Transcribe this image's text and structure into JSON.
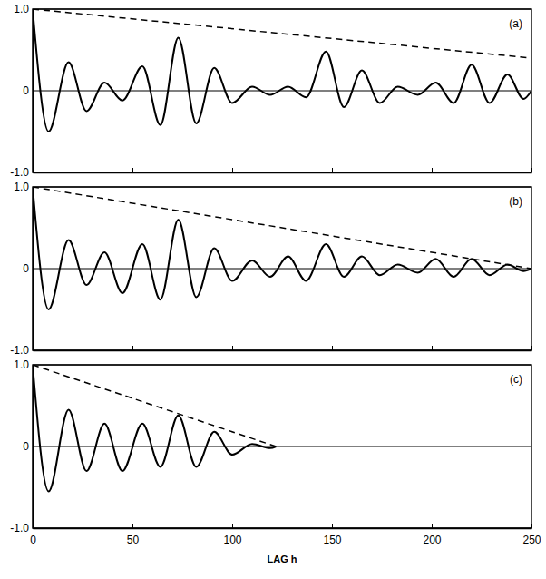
{
  "chart_data": [
    {
      "type": "line",
      "title": "(a)",
      "x": [
        0,
        8,
        18,
        27,
        36,
        45,
        55,
        64,
        73,
        82,
        91,
        100,
        110,
        119,
        128,
        137,
        147,
        156,
        165,
        174,
        183,
        193,
        202,
        211,
        220,
        229,
        238,
        246,
        250
      ],
      "series": [
        {
          "color": "#000000",
          "line_style": "solid",
          "values": [
            1.0,
            -0.5,
            0.35,
            -0.25,
            0.1,
            -0.12,
            0.3,
            -0.42,
            0.65,
            -0.4,
            0.28,
            -0.15,
            0.05,
            -0.05,
            0.05,
            -0.08,
            0.48,
            -0.2,
            0.25,
            -0.15,
            0.05,
            -0.05,
            0.1,
            -0.15,
            0.32,
            -0.15,
            0.2,
            -0.1,
            0.0
          ]
        },
        {
          "color": "#000000",
          "line_style": "dashed",
          "x": [
            0,
            250
          ],
          "values": [
            1.0,
            0.4
          ]
        }
      ],
      "xlim": [
        0,
        250
      ],
      "xticks": [
        0,
        50,
        100,
        150,
        200,
        250
      ],
      "ylim": [
        -1,
        1
      ],
      "yticks": [
        {
          "value": -1,
          "label": "-1.0"
        },
        0,
        {
          "value": 1,
          "label": "1.0"
        }
      ],
      "grid": true,
      "tick_labels": "y"
    },
    {
      "type": "line",
      "title": "(b)",
      "x": [
        0,
        8,
        18,
        27,
        36,
        45,
        55,
        64,
        73,
        82,
        91,
        100,
        110,
        119,
        128,
        137,
        147,
        156,
        165,
        174,
        183,
        193,
        202,
        211,
        220,
        229,
        238,
        246,
        250
      ],
      "series": [
        {
          "color": "#000000",
          "line_style": "solid",
          "values": [
            1.0,
            -0.5,
            0.35,
            -0.2,
            0.2,
            -0.3,
            0.3,
            -0.38,
            0.6,
            -0.35,
            0.25,
            -0.15,
            0.1,
            -0.1,
            0.15,
            -0.15,
            0.3,
            -0.1,
            0.15,
            -0.08,
            0.05,
            -0.05,
            0.12,
            -0.1,
            0.12,
            -0.08,
            0.05,
            -0.03,
            0.0
          ]
        },
        {
          "color": "#000000",
          "line_style": "dashed",
          "x": [
            0,
            250
          ],
          "values": [
            1.0,
            0.0
          ]
        }
      ],
      "xlim": [
        0,
        250
      ],
      "xticks": [
        0,
        50,
        100,
        150,
        200,
        250
      ],
      "ylim": [
        -1,
        1
      ],
      "yticks": [
        {
          "value": -1,
          "label": "-1.0"
        },
        0,
        {
          "value": 1,
          "label": "1.0"
        }
      ],
      "grid": true,
      "tick_labels": "y"
    },
    {
      "type": "line",
      "title": "(c)",
      "x_label": "LAG h",
      "x": [
        0,
        8,
        18,
        27,
        36,
        45,
        55,
        64,
        73,
        82,
        91,
        100,
        110,
        119,
        122
      ],
      "series": [
        {
          "color": "#000000",
          "line_style": "solid",
          "values": [
            1.0,
            -0.55,
            0.45,
            -0.3,
            0.28,
            -0.3,
            0.28,
            -0.25,
            0.38,
            -0.25,
            0.18,
            -0.1,
            0.03,
            -0.02,
            0.0
          ]
        },
        {
          "color": "#000000",
          "line_style": "dashed",
          "x": [
            0,
            122
          ],
          "values": [
            1.0,
            0.0
          ]
        }
      ],
      "xlim": [
        0,
        250
      ],
      "xticks": [
        0,
        50,
        100,
        150,
        200,
        250
      ],
      "ylim": [
        -1,
        1
      ],
      "yticks": [
        {
          "value": -1,
          "label": "-1.0"
        },
        0,
        {
          "value": 1,
          "label": "1.0"
        }
      ],
      "grid": true
    }
  ]
}
